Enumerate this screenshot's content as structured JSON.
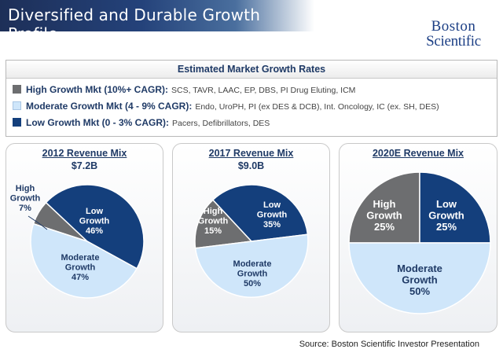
{
  "header": {
    "title": "Diversified and Durable Growth Profile"
  },
  "logo": {
    "line1": "Boston",
    "line2": "Scientific"
  },
  "legend": {
    "heading": "Estimated Market Growth Rates",
    "rows": [
      {
        "label": "High Growth Mkt (10%+ CAGR):",
        "detail": "SCS, TAVR, LAAC, EP, DBS, PI Drug Eluting, ICM",
        "color": "#6d6e70"
      },
      {
        "label": "Moderate Growth Mkt (4 - 9% CAGR):",
        "detail": "Endo, UroPH, PI (ex DES & DCB), Int. Oncology, IC (ex. SH, DES)",
        "color": "#cfe6fa"
      },
      {
        "label": "Low Growth Mkt (0 - 3% CAGR):",
        "detail": "Pacers, Defibrillators, DES",
        "color": "#143f7c"
      }
    ]
  },
  "chart_data": [
    {
      "type": "pie",
      "title": "2012 Revenue Mix",
      "subtitle": "$7.2B",
      "slices": [
        {
          "name": "High Growth",
          "value": 7,
          "label": "7%"
        },
        {
          "name": "Low Growth",
          "value": 46,
          "label": "46%"
        },
        {
          "name": "Moderate Growth",
          "value": 47,
          "label": "47%"
        }
      ]
    },
    {
      "type": "pie",
      "title": "2017 Revenue Mix",
      "subtitle": "$9.0B",
      "slices": [
        {
          "name": "High Growth",
          "value": 15,
          "label": "15%"
        },
        {
          "name": "Low Growth",
          "value": 35,
          "label": "35%"
        },
        {
          "name": "Moderate Growth",
          "value": 50,
          "label": "50%"
        }
      ]
    },
    {
      "type": "pie",
      "title": "2020E Revenue Mix",
      "subtitle": "",
      "slices": [
        {
          "name": "High Growth",
          "value": 25,
          "label": "25%"
        },
        {
          "name": "Low Growth",
          "value": 25,
          "label": "25%"
        },
        {
          "name": "Moderate Growth",
          "value": 50,
          "label": "50%"
        }
      ]
    }
  ],
  "colors": {
    "high": "#6d6e70",
    "low": "#143f7c",
    "moderate": "#cfe6fa"
  },
  "source": "Source: Boston Scientific Investor Presentation"
}
